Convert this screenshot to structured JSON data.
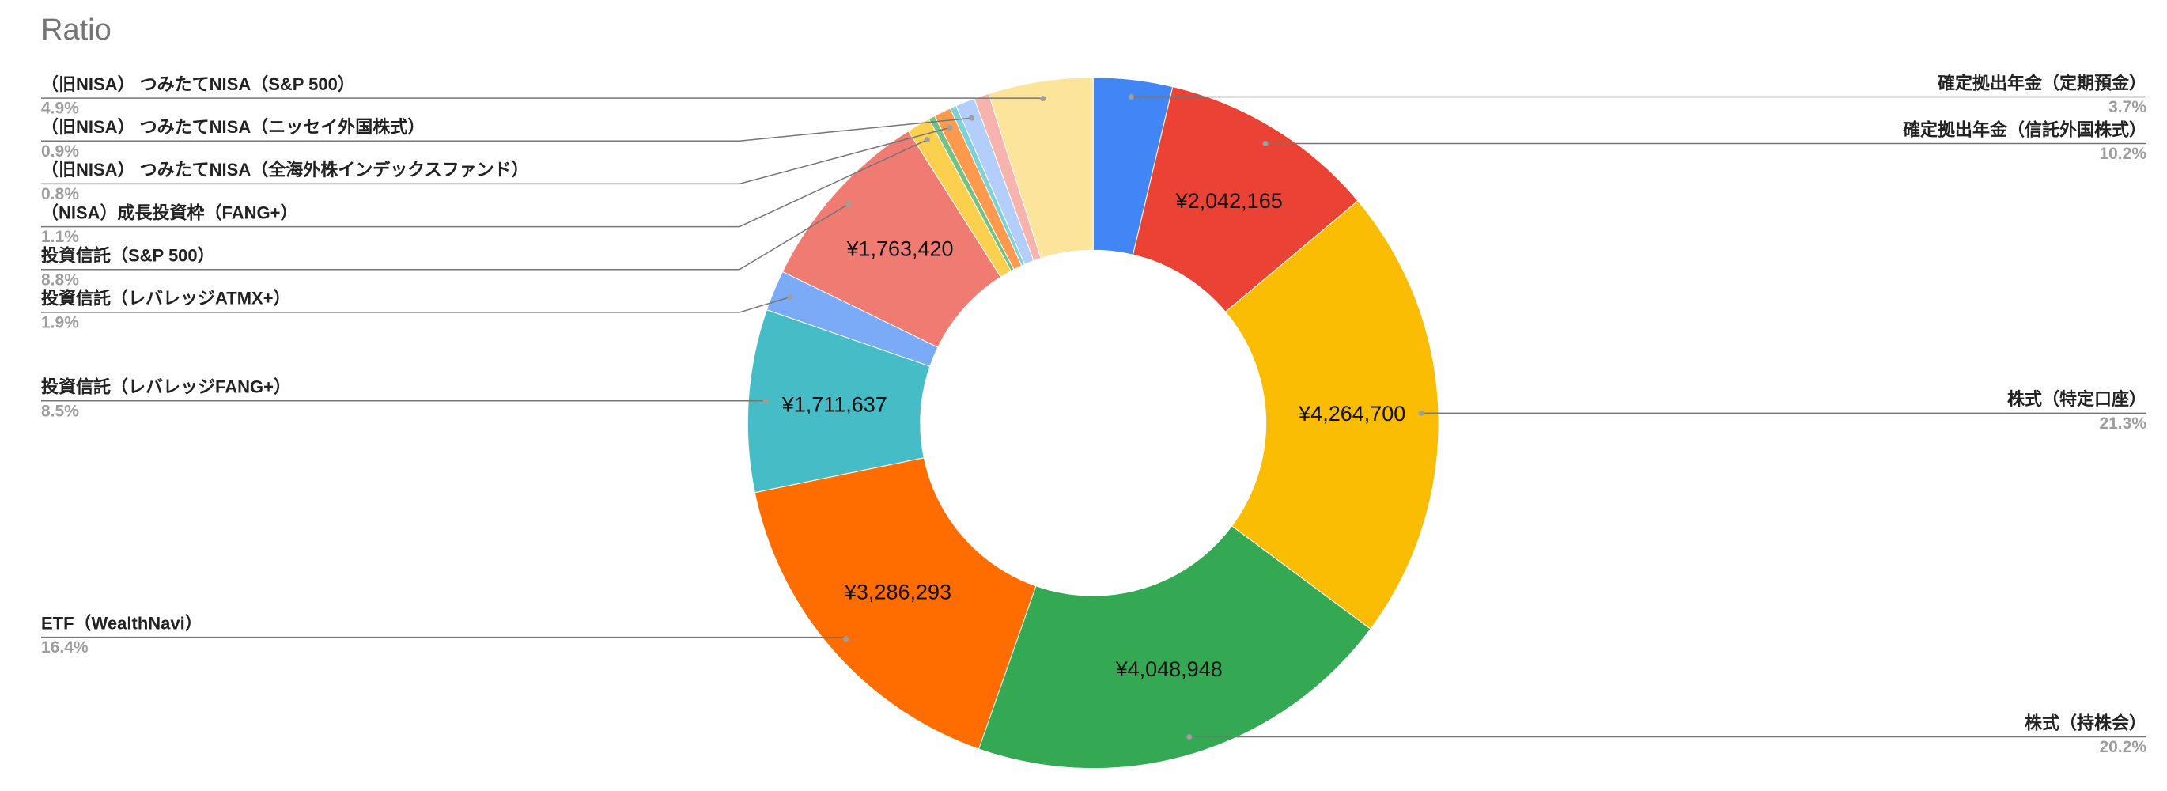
{
  "chart_data": {
    "type": "donut",
    "title": "Ratio",
    "categories": [
      "確定拠出年金（定期預金）",
      "確定拠出年金（信託外国株式）",
      "株式（特定口座）",
      "株式（持株会）",
      "ETF（WealthNavi）",
      "投資信託（レバレッジFANG+）",
      "投資信託（レバレッジATMX+）",
      "投資信託（S&P 500）",
      "（NISA）成長投資枠（FANG+）",
      null,
      "（旧NISA） つみたてNISA（全海外株インデックスファンド）",
      null,
      "（旧NISA） つみたてNISA（ニッセイ外国株式）",
      null,
      "（旧NISA） つみたてNISA（S&P 500）"
    ],
    "values": [
      741000,
      2042165,
      4264700,
      4048948,
      3286293,
      1711637,
      381000,
      1763420,
      220000,
      60000,
      160000,
      60000,
      180000,
      140000,
      981000
    ],
    "value_labels": [
      null,
      "¥2,042,165",
      "¥4,264,700",
      "¥4,048,948",
      "¥3,286,293",
      "¥1,711,637",
      null,
      "¥1,763,420",
      null,
      null,
      null,
      null,
      null,
      null,
      null
    ],
    "percent_labels": [
      "3.7%",
      "10.2%",
      "21.3%",
      "20.2%",
      "16.4%",
      "8.5%",
      "1.9%",
      "8.8%",
      "1.1%",
      null,
      "0.8%",
      null,
      "0.9%",
      null,
      "4.9%"
    ],
    "colors": [
      "#4285f4",
      "#ea4335",
      "#fbbc04",
      "#34a853",
      "#ff6d01",
      "#46bdc6",
      "#7baaf7",
      "#f07b72",
      "#fcd04f",
      "#71c287",
      "#ff994d",
      "#7ed1d7",
      "#b3cefb",
      "#f7b4ae",
      "#fde49b"
    ]
  }
}
